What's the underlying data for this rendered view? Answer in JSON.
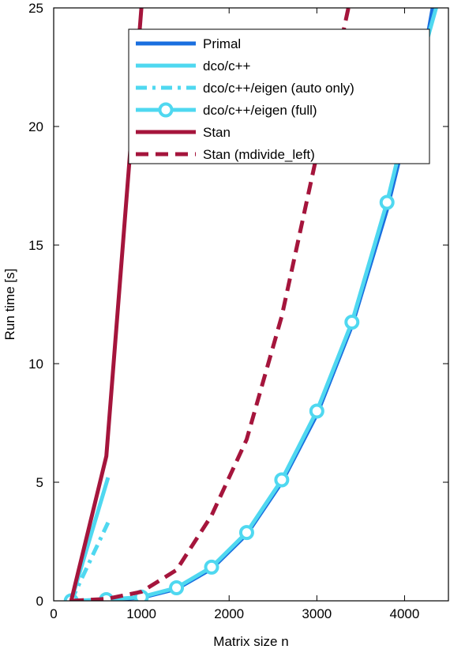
{
  "chart_data": {
    "type": "line",
    "title": "",
    "xlabel": "Matrix size n",
    "ylabel": "Run time [s]",
    "xlim": [
      0,
      4500
    ],
    "ylim": [
      0,
      25
    ],
    "xticks": [
      0,
      1000,
      2000,
      3000,
      4000
    ],
    "yticks": [
      0,
      5,
      10,
      15,
      20,
      25
    ],
    "grid": false,
    "legend_position": "top-right",
    "series": [
      {
        "name": "Primal",
        "color": "#1a6fdf",
        "dash": "solid",
        "marker": "none",
        "width": 5,
        "x": [
          200,
          600,
          1000,
          1400,
          1800,
          2200,
          2600,
          3000,
          3400,
          3800,
          4200,
          4320
        ],
        "y": [
          0.0,
          0.04,
          0.13,
          0.5,
          1.35,
          2.8,
          5.0,
          7.85,
          11.6,
          16.5,
          22.5,
          25.0
        ]
      },
      {
        "name": "dco/c++",
        "color": "#4fd8f0",
        "dash": "solid",
        "marker": "none",
        "width": 5,
        "x": [
          200,
          620
        ],
        "y": [
          0.0,
          5.2
        ]
      },
      {
        "name": "dco/c++/eigen (auto only)",
        "color": "#4fd8f0",
        "dash": "dashdot",
        "marker": "none",
        "width": 5,
        "x": [
          200,
          620
        ],
        "y": [
          0.0,
          3.3
        ]
      },
      {
        "name": "dco/c++/eigen (full)",
        "color": "#4fd8f0",
        "dash": "solid",
        "marker": "circle",
        "width": 5,
        "x": [
          200,
          600,
          1000,
          1400,
          1800,
          2200,
          2600,
          3000,
          3400,
          3800,
          4200,
          4360
        ],
        "y": [
          0.0,
          0.05,
          0.16,
          0.55,
          1.42,
          2.88,
          5.1,
          8.0,
          11.75,
          16.8,
          22.9,
          25.0
        ],
        "marker_points": [
          200,
          600,
          1000,
          1400,
          1800,
          2200,
          2600,
          3000,
          3400,
          3800
        ]
      },
      {
        "name": "Stan",
        "color": "#a5153c",
        "dash": "solid",
        "marker": "none",
        "width": 5,
        "x": [
          200,
          600,
          1000
        ],
        "y": [
          0.0,
          6.1,
          25.0
        ]
      },
      {
        "name": "Stan (mdivide_left)",
        "color": "#a5153c",
        "dash": "dashed",
        "marker": "none",
        "width": 5,
        "x": [
          200,
          600,
          1000,
          1400,
          1800,
          2200,
          2600,
          3000,
          3360
        ],
        "y": [
          0.0,
          0.08,
          0.38,
          1.3,
          3.6,
          6.8,
          12.0,
          18.8,
          25.0
        ]
      }
    ]
  }
}
